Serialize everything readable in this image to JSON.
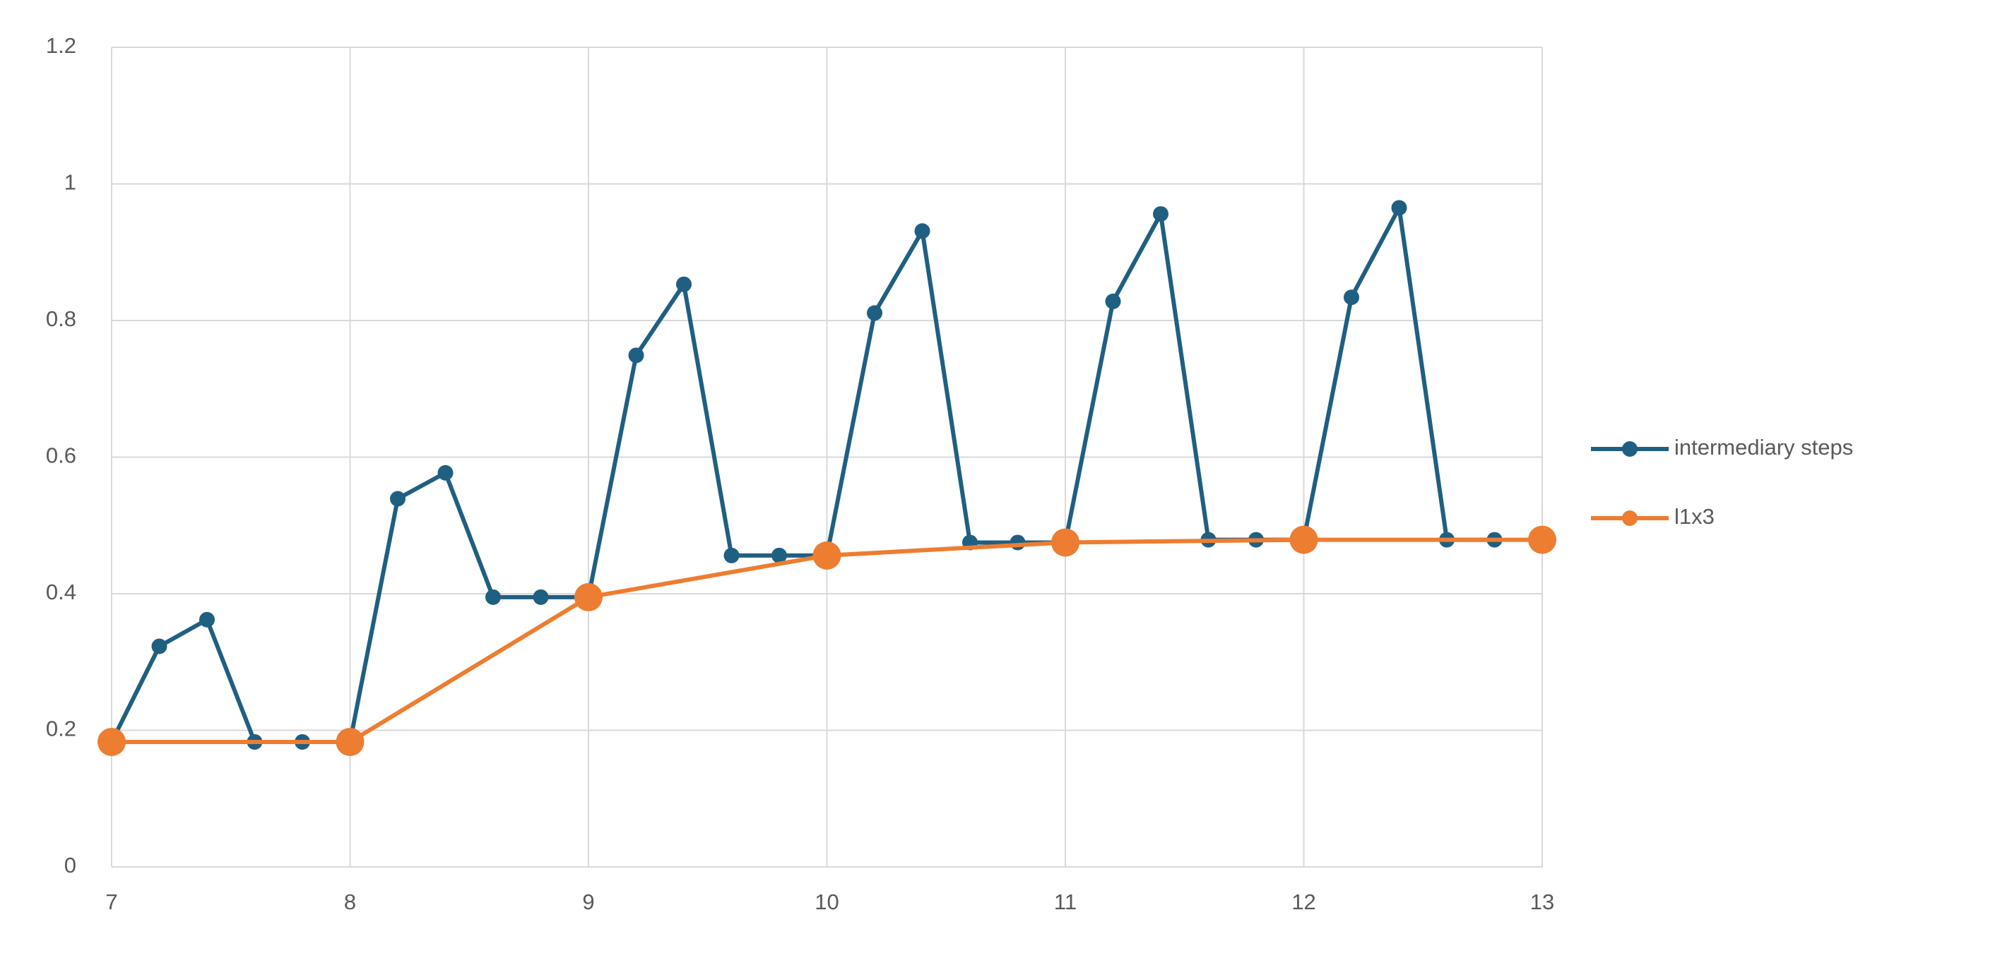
{
  "chart_data": {
    "type": "line",
    "series": [
      {
        "name": "intermediary steps",
        "color": "#1f5f82",
        "x": [
          7,
          7.2,
          7.4,
          7.6,
          7.8,
          8,
          8.2,
          8.4,
          8.6,
          8.8,
          9,
          9.2,
          9.4,
          9.6,
          9.8,
          10,
          10.2,
          10.4,
          10.6,
          10.8,
          11,
          11.2,
          11.4,
          11.6,
          11.8,
          12,
          12.2,
          12.4,
          12.6,
          12.8
        ],
        "values": [
          0.183,
          0.323,
          0.362,
          0.183,
          0.183,
          0.183,
          0.539,
          0.577,
          0.395,
          0.395,
          0.395,
          0.749,
          0.853,
          0.456,
          0.456,
          0.456,
          0.811,
          0.931,
          0.475,
          0.475,
          0.475,
          0.828,
          0.956,
          0.479,
          0.479,
          0.479,
          0.834,
          0.965,
          0.479,
          0.479
        ]
      },
      {
        "name": "l1x3",
        "color": "#ed7d31",
        "x": [
          7,
          8,
          9,
          10,
          11,
          12,
          13
        ],
        "values": [
          0.183,
          0.183,
          0.395,
          0.456,
          0.475,
          0.479,
          0.479
        ]
      }
    ],
    "xlim": [
      7,
      13
    ],
    "xticks": [
      7,
      8,
      9,
      10,
      11,
      12,
      13
    ],
    "ylim": [
      0,
      1.2
    ],
    "yticks": [
      0,
      0.2,
      0.4,
      0.6,
      0.8,
      1,
      1.2
    ],
    "grid": true,
    "legend": "right"
  }
}
